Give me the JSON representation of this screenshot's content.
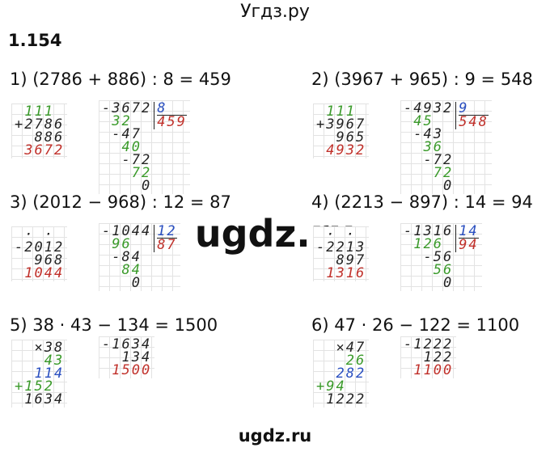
{
  "header": "Угдз.ру",
  "number": "1.154",
  "problems": [
    {
      "equation": "1) (2786 + 886) : 8 = 459",
      "left": {
        "lines": [
          {
            "text": " 111",
            "color": "#3a9a2a"
          },
          {
            "text": "+2786",
            "color": "#222222"
          },
          {
            "text": "  886",
            "color": "#222222"
          },
          {
            "text": " 3672",
            "color": "#c0302a"
          }
        ]
      },
      "right": {
        "lines": [
          {
            "text": "-3672",
            "color": "#222222"
          },
          {
            "text": " 32",
            "color": "#3a9a2a"
          },
          {
            "text": " -47",
            "color": "#222222"
          },
          {
            "text": "  40",
            "color": "#3a9a2a"
          },
          {
            "text": "  -72",
            "color": "#222222"
          },
          {
            "text": "   72",
            "color": "#3a9a2a"
          },
          {
            "text": "    0",
            "color": "#222222"
          }
        ],
        "divisor": "8",
        "quotient": "459"
      }
    },
    {
      "equation": "2) (3967 + 965) : 9 = 548",
      "left": {
        "lines": [
          {
            "text": " 111",
            "color": "#3a9a2a"
          },
          {
            "text": "+3967",
            "color": "#222222"
          },
          {
            "text": "  965",
            "color": "#222222"
          },
          {
            "text": " 4932",
            "color": "#c0302a"
          }
        ]
      },
      "right": {
        "lines": [
          {
            "text": "-4932",
            "color": "#222222"
          },
          {
            "text": " 45",
            "color": "#3a9a2a"
          },
          {
            "text": " -43",
            "color": "#222222"
          },
          {
            "text": "  36",
            "color": "#3a9a2a"
          },
          {
            "text": "  -72",
            "color": "#222222"
          },
          {
            "text": "   72",
            "color": "#3a9a2a"
          },
          {
            "text": "    0",
            "color": "#222222"
          }
        ],
        "divisor": "9",
        "quotient": "548"
      }
    },
    {
      "equation": "3) (2012 − 968) : 12 = 87",
      "left": {
        "lines": [
          {
            "text": " · ·",
            "color": "#222222"
          },
          {
            "text": "-2012",
            "color": "#222222"
          },
          {
            "text": "  968",
            "color": "#222222"
          },
          {
            "text": " 1044",
            "color": "#c0302a"
          }
        ]
      },
      "right": {
        "lines": [
          {
            "text": "-1044",
            "color": "#222222"
          },
          {
            "text": " 96",
            "color": "#3a9a2a"
          },
          {
            "text": " -84",
            "color": "#222222"
          },
          {
            "text": "  84",
            "color": "#3a9a2a"
          },
          {
            "text": "   0",
            "color": "#222222"
          }
        ],
        "divisor": "12",
        "quotient": "87"
      }
    },
    {
      "equation": "4) (2213 − 897) : 14 = 94",
      "left": {
        "lines": [
          {
            "text": " · ·",
            "color": "#222222"
          },
          {
            "text": "-2213",
            "color": "#222222"
          },
          {
            "text": "  897",
            "color": "#222222"
          },
          {
            "text": " 1316",
            "color": "#c0302a"
          }
        ]
      },
      "right": {
        "lines": [
          {
            "text": "-1316",
            "color": "#222222"
          },
          {
            "text": " 126",
            "color": "#3a9a2a"
          },
          {
            "text": "  -56",
            "color": "#222222"
          },
          {
            "text": "   56",
            "color": "#3a9a2a"
          },
          {
            "text": "    0",
            "color": "#222222"
          }
        ],
        "divisor": "14",
        "quotient": "94"
      }
    },
    {
      "equation": "5) 38 · 43 − 134 = 1500",
      "left": {
        "lines": [
          {
            "text": "  ×38",
            "color": "#222222"
          },
          {
            "text": "   43",
            "color": "#3a9a2a"
          },
          {
            "text": "  114",
            "color": "#2a4fc0"
          },
          {
            "text": "+152",
            "color": "#3a9a2a"
          },
          {
            "text": " 1634",
            "color": "#222222"
          }
        ]
      },
      "right": {
        "lines": [
          {
            "text": "-1634",
            "color": "#222222"
          },
          {
            "text": "  134",
            "color": "#222222"
          },
          {
            "text": " 1500",
            "color": "#c0302a"
          }
        ]
      }
    },
    {
      "equation": "6) 47 · 26 − 122 = 1100",
      "left": {
        "lines": [
          {
            "text": "  ×47",
            "color": "#222222"
          },
          {
            "text": "   26",
            "color": "#3a9a2a"
          },
          {
            "text": "  282",
            "color": "#2a4fc0"
          },
          {
            "text": "+94",
            "color": "#3a9a2a"
          },
          {
            "text": " 1222",
            "color": "#222222"
          }
        ]
      },
      "right": {
        "lines": [
          {
            "text": "-1222",
            "color": "#222222"
          },
          {
            "text": "  122",
            "color": "#222222"
          },
          {
            "text": " 1100",
            "color": "#c0302a"
          }
        ]
      }
    }
  ],
  "watermark": "ugdz.ru",
  "footer": "ugdz.ru"
}
